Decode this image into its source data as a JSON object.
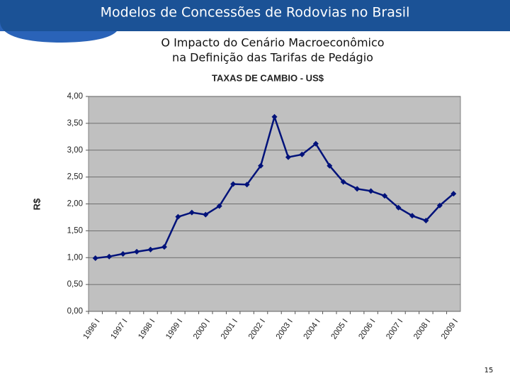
{
  "slide_title": "Modelos de Concessões de Rodovias no Brasil",
  "subtitle": [
    "O Impacto do Cenário Macroeconômico",
    "na Definição das Tarifas de Pedágio"
  ],
  "page_number": "15",
  "chart_data": {
    "type": "line",
    "title": "TAXAS DE CAMBIO - US$",
    "y_label": "R$",
    "categories": [
      "1996 I",
      null,
      "1997 I",
      null,
      "1998 I",
      null,
      "1999 I",
      null,
      "2000 I",
      null,
      "2001 I",
      null,
      "2002 I",
      null,
      "2003 I",
      null,
      "2004 I",
      null,
      "2005 I",
      null,
      "2006 I",
      null,
      "2007 I",
      null,
      "2008 I",
      null,
      "2009 I"
    ],
    "series": [
      {
        "name": "US$",
        "color": "#00127a",
        "values": [
          0.99,
          1.02,
          1.07,
          1.11,
          1.15,
          1.2,
          1.76,
          1.84,
          1.8,
          1.96,
          2.37,
          2.36,
          2.71,
          3.62,
          2.87,
          2.92,
          3.12,
          2.71,
          2.41,
          2.28,
          2.24,
          2.15,
          1.93,
          1.78,
          1.69,
          1.97,
          2.19
        ]
      }
    ],
    "ylim": [
      0,
      4
    ],
    "yticks": [
      {
        "value": 0,
        "label": "0,00"
      },
      {
        "value": 0.5,
        "label": "0,50"
      },
      {
        "value": 1,
        "label": "1,00"
      },
      {
        "value": 1.5,
        "label": "1,50"
      },
      {
        "value": 2,
        "label": "2,00"
      },
      {
        "value": 2.5,
        "label": "2,50"
      },
      {
        "value": 3,
        "label": "3,00"
      },
      {
        "value": 3.5,
        "label": "3,50"
      },
      {
        "value": 4,
        "label": "4,00"
      }
    ],
    "grid": true
  }
}
